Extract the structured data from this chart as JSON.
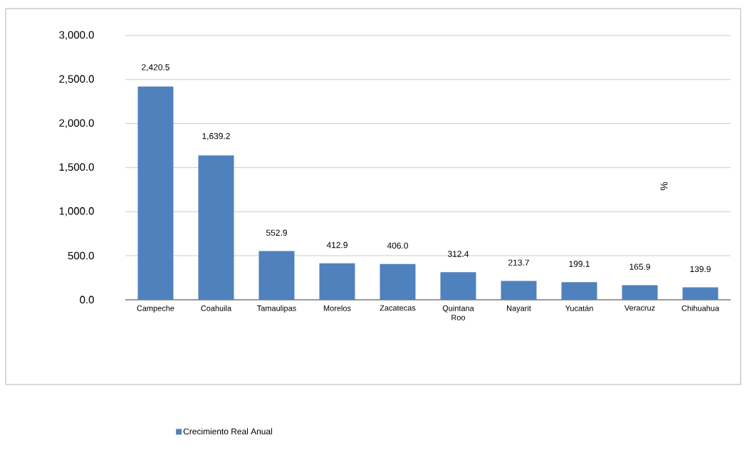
{
  "chart_data": {
    "type": "bar",
    "categories": [
      "Campeche",
      "Coahuila",
      "Tamaulipas",
      "Morelos",
      "Zacatecas",
      "Quintana Roo",
      "Nayarit",
      "Yucatán",
      "Veracruz",
      "Chihuahua"
    ],
    "series": [
      {
        "name": "Crecimiento Real Anual",
        "color": "#4f81bd",
        "values": [
          2420.5,
          1639.2,
          552.9,
          412.9,
          406.0,
          312.4,
          213.7,
          199.1,
          165.9,
          139.9
        ],
        "value_labels": [
          "2,420.5",
          "1,639.2",
          "552.9",
          "412.9",
          "406.0",
          "312.4",
          "213.7",
          "199.1",
          "165.9",
          "139.9"
        ]
      }
    ],
    "ylim": [
      0,
      3000
    ],
    "yticks": [
      {
        "value": 0,
        "label": "0.0"
      },
      {
        "value": 500,
        "label": "500.0"
      },
      {
        "value": 1000,
        "label": "1,000.0"
      },
      {
        "value": 1500,
        "label": "1,500.0"
      },
      {
        "value": 2000,
        "label": "2,000.0"
      },
      {
        "value": 2500,
        "label": "2,500.0"
      },
      {
        "value": 3000,
        "label": "3,000.0"
      }
    ],
    "grid": "y",
    "legend": "bottom",
    "annotations": [
      "%"
    ]
  }
}
